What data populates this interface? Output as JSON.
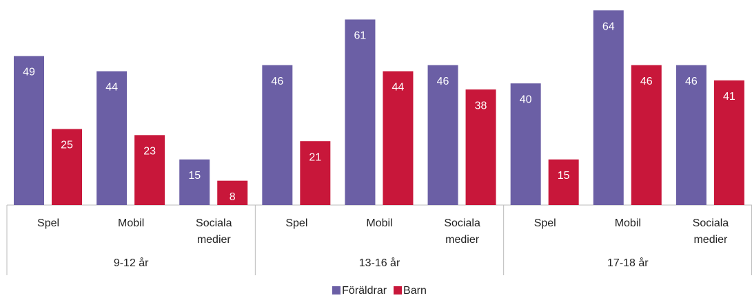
{
  "chart_data": {
    "type": "bar",
    "categories": [
      "Spel",
      "Mobil",
      "Sociala medier",
      "Spel",
      "Mobil",
      "Sociala medier",
      "Spel",
      "Mobil",
      "Sociala medier"
    ],
    "groups": [
      "9-12 år",
      "13-16 år",
      "17-18 år"
    ],
    "series": [
      {
        "name": "Föräldrar",
        "color": "#6b5fa5",
        "values": [
          49,
          44,
          15,
          46,
          61,
          46,
          40,
          64,
          46
        ]
      },
      {
        "name": "Barn",
        "color": "#c8173a",
        "values": [
          25,
          23,
          8,
          21,
          44,
          38,
          15,
          46,
          41
        ]
      }
    ]
  }
}
